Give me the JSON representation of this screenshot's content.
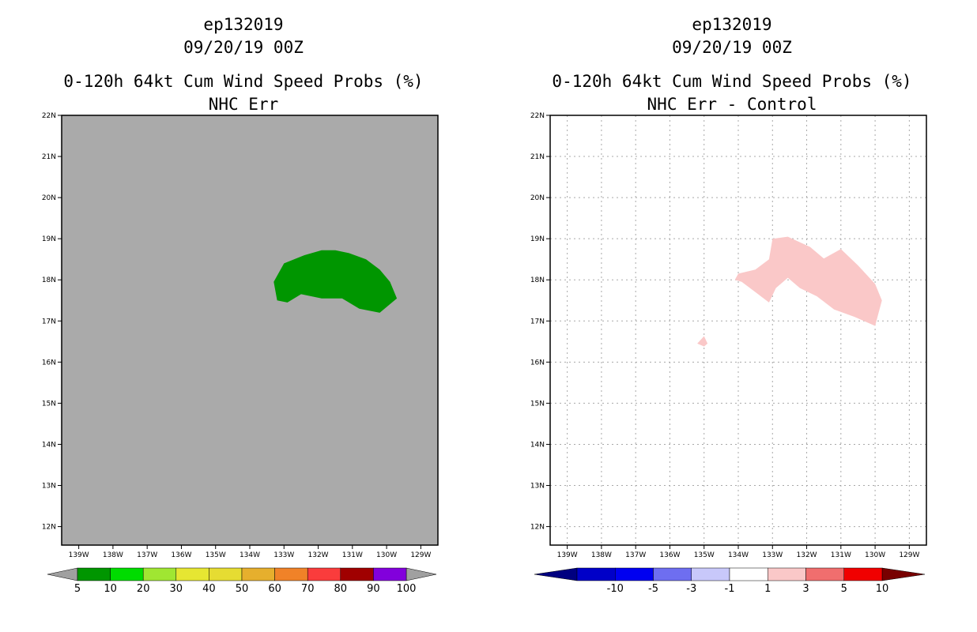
{
  "panels": [
    {
      "id": "left",
      "storm_id": "ep132019",
      "datetime": "09/20/19 00Z",
      "product": "0-120h 64kt Cum Wind Speed Probs (%)",
      "subtitle": "NHC Err",
      "background_color": "#aaaaaa",
      "grid": false,
      "lat_labels": [
        "22N",
        "21N",
        "20N",
        "19N",
        "18N",
        "17N",
        "16N",
        "15N",
        "14N",
        "13N",
        "12N"
      ],
      "lon_labels": [
        "139W",
        "138W",
        "137W",
        "136W",
        "135W",
        "134W",
        "133W",
        "132W",
        "131W",
        "130W",
        "129W"
      ],
      "colorbar": {
        "labels": [
          "5",
          "10",
          "20",
          "30",
          "40",
          "50",
          "60",
          "70",
          "80",
          "90",
          "100"
        ],
        "colors": [
          "#009600",
          "#00dc00",
          "#a0e632",
          "#e6e632",
          "#e6dc32",
          "#e6af2d",
          "#f08228",
          "#fa3c3c",
          "#a00000",
          "#8200dc"
        ],
        "end_low": "#a0a0a0",
        "end_high": "#a0a0a0"
      },
      "regions": [
        {
          "name": "prob-area-5-10",
          "color": "#009600",
          "points": [
            [
              -133.3,
              17.95
            ],
            [
              -133.0,
              18.4
            ],
            [
              -132.4,
              18.6
            ],
            [
              -131.9,
              18.72
            ],
            [
              -131.5,
              18.72
            ],
            [
              -131.1,
              18.65
            ],
            [
              -130.6,
              18.5
            ],
            [
              -130.2,
              18.25
            ],
            [
              -129.9,
              17.95
            ],
            [
              -129.7,
              17.55
            ],
            [
              -130.2,
              17.2
            ],
            [
              -130.8,
              17.3
            ],
            [
              -131.3,
              17.55
            ],
            [
              -131.9,
              17.55
            ],
            [
              -132.5,
              17.65
            ],
            [
              -132.9,
              17.45
            ],
            [
              -133.2,
              17.5
            ]
          ]
        }
      ]
    },
    {
      "id": "right",
      "storm_id": "ep132019",
      "datetime": "09/20/19 00Z",
      "product": "0-120h 64kt Cum Wind Speed Probs (%)",
      "subtitle": "NHC Err - Control",
      "background_color": "#ffffff",
      "grid": true,
      "lat_labels": [
        "22N",
        "21N",
        "20N",
        "19N",
        "18N",
        "17N",
        "16N",
        "15N",
        "14N",
        "13N",
        "12N"
      ],
      "lon_labels": [
        "139W",
        "138W",
        "137W",
        "136W",
        "135W",
        "134W",
        "133W",
        "132W",
        "131W",
        "130W",
        "129W"
      ],
      "colorbar": {
        "labels": [
          "-10",
          "-5",
          "-3",
          "-1",
          "1",
          "3",
          "5",
          "10"
        ],
        "colors": [
          "#0000c8",
          "#0000f0",
          "#6e6ef0",
          "#c8c8fa",
          "#ffffff",
          "#fac8c8",
          "#f06e6e",
          "#f00000"
        ],
        "end_low": "#000080",
        "end_high": "#780000"
      },
      "regions": [
        {
          "name": "diff-area-1-3-main",
          "color": "#fac8c8",
          "points": [
            [
              -134.1,
              18.0
            ],
            [
              -134.0,
              18.15
            ],
            [
              -133.5,
              18.25
            ],
            [
              -133.1,
              18.5
            ],
            [
              -133.0,
              19.0
            ],
            [
              -132.55,
              19.05
            ],
            [
              -131.9,
              18.8
            ],
            [
              -131.5,
              18.52
            ],
            [
              -131.0,
              18.75
            ],
            [
              -130.5,
              18.35
            ],
            [
              -130.0,
              17.9
            ],
            [
              -129.8,
              17.5
            ],
            [
              -130.0,
              16.88
            ],
            [
              -130.6,
              17.1
            ],
            [
              -131.2,
              17.28
            ],
            [
              -131.7,
              17.6
            ],
            [
              -132.2,
              17.8
            ],
            [
              -132.55,
              18.05
            ],
            [
              -132.9,
              17.8
            ],
            [
              -133.1,
              17.45
            ],
            [
              -133.5,
              17.7
            ],
            [
              -133.9,
              17.95
            ]
          ]
        },
        {
          "name": "diff-area-1-3-small",
          "color": "#fac8c8",
          "points": [
            [
              -135.2,
              16.45
            ],
            [
              -135.0,
              16.63
            ],
            [
              -134.9,
              16.45
            ],
            [
              -135.0,
              16.38
            ]
          ]
        }
      ]
    }
  ]
}
